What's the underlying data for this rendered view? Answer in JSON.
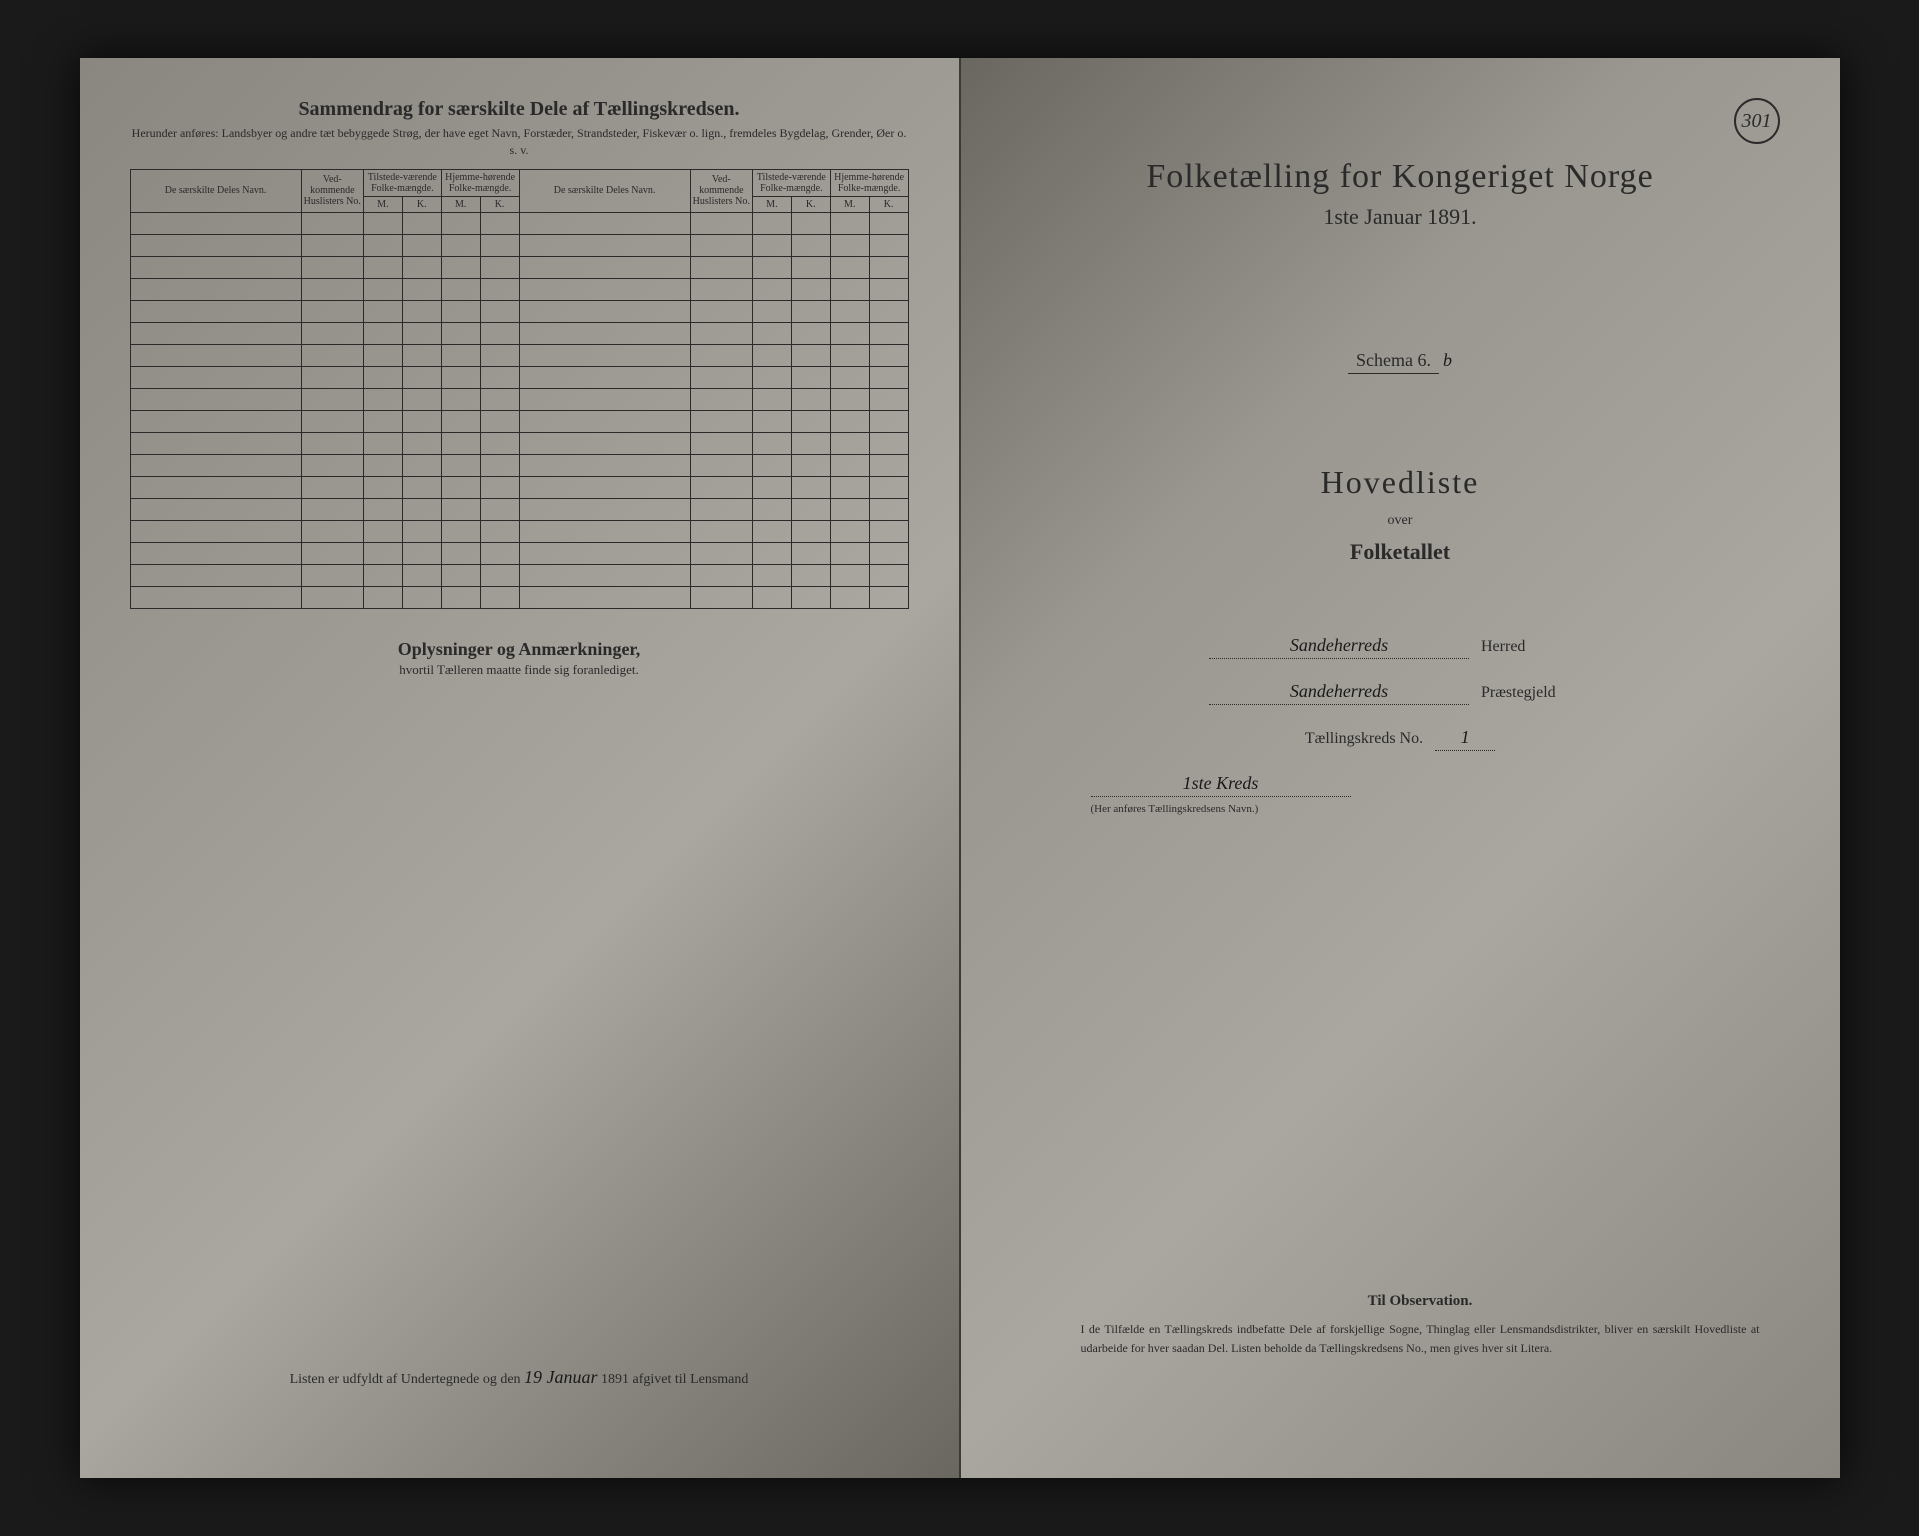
{
  "pageNumber": "301",
  "leftPage": {
    "title": "Sammendrag for særskilte Dele af Tællingskredsen.",
    "subtitle": "Herunder anføres: Landsbyer og andre tæt bebyggede Strøg, der have eget Navn, Forstæder, Strandsteder, Fiskevær o. lign., fremdeles Bygdelag, Grender, Øer o. s. v.",
    "columns": {
      "navn": "De særskilte Deles Navn.",
      "vedkommende": "Ved-kommende Huslisters No.",
      "tilstedA": "Tilstede-værende Folke-mængde.",
      "hjemmeA": "Hjemme-hørende Folke-mængde.",
      "navn2": "De særskilte Deles Navn.",
      "vedkommende2": "Ved-kommende Huslisters No.",
      "tilstedB": "Tilstede-værende Folke-mængde.",
      "hjemmeB": "Hjemme-hørende Folke-mængde.",
      "m": "M.",
      "k": "K."
    },
    "oplysningerTitle": "Oplysninger og Anmærkninger,",
    "oplysningerSub": "hvortil Tælleren maatte finde sig foranlediget.",
    "footerPrefix": "Listen er udfyldt af Undertegnede og den",
    "footerDate": "19 Januar",
    "footerYear": "1891 afgivet til Lensmand"
  },
  "rightPage": {
    "mainTitle": "Folketælling for Kongeriget Norge",
    "mainSub": "1ste Januar 1891.",
    "schemaLabel": "Schema 6.",
    "schemaHand": "b",
    "hovedliste": "Hovedliste",
    "over": "over",
    "folketallet": "Folketallet",
    "herredValue": "Sandeherreds",
    "herredLabel": "Herred",
    "prestegjeldValue": "Sandeherreds",
    "prestegjeldLabel": "Præstegjeld",
    "kredsLabel": "Tællingskreds No.",
    "kredsValue": "1",
    "kredsNameValue": "1ste Kreds",
    "kredsNote": "(Her anføres Tællingskredsens Navn.)",
    "obsTitle": "Til Observation.",
    "obsBody": "I de Tilfælde en Tællingskreds indbefatte Dele af forskjellige Sogne, Thinglag eller Lensmandsdistrikter, bliver en særskilt Hovedliste at udarbeide for hver saadan Del. Listen beholde da Tællingskredsens No., men gives hver sit Litera."
  },
  "blankRows": 18
}
